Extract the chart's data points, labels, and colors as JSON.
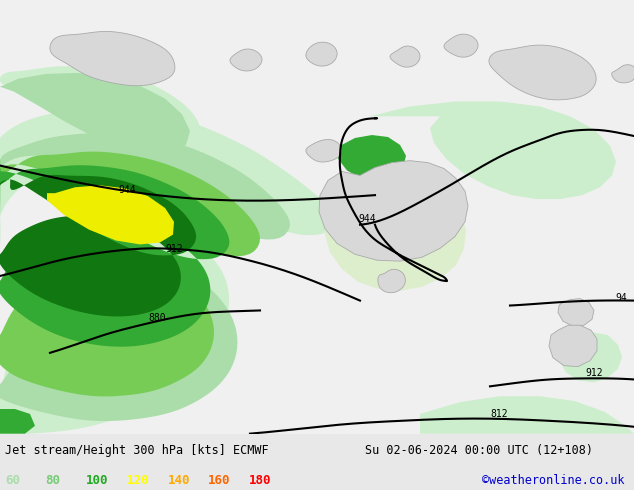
{
  "title_left": "Jet stream/Height 300 hPa [kts] ECMWF",
  "title_right": "Su 02-06-2024 00:00 UTC (12+108)",
  "credit": "©weatheronline.co.uk",
  "legend_values": [
    60,
    80,
    100,
    120,
    140,
    160,
    180
  ],
  "legend_colors": [
    "#aaddaa",
    "#77cc77",
    "#22aa22",
    "#ffff00",
    "#ffaa00",
    "#ff6600",
    "#ff0000"
  ],
  "bg_color": "#e8e8e8",
  "land_color": "#d8d8d8",
  "fig_width": 6.34,
  "fig_height": 4.9,
  "dpi": 100,
  "bottom_bar_color": "#e8e8e8",
  "label_fontsize": 9,
  "credit_color": "#0000cc",
  "c_lightest_green": "#cceecc",
  "c_light_green": "#aaddaa",
  "c_med_green": "#77cc55",
  "c_dark_green": "#33aa33",
  "c_darker_green": "#117711",
  "c_yellow": "#eeee00",
  "c_orange": "#ffaa00"
}
